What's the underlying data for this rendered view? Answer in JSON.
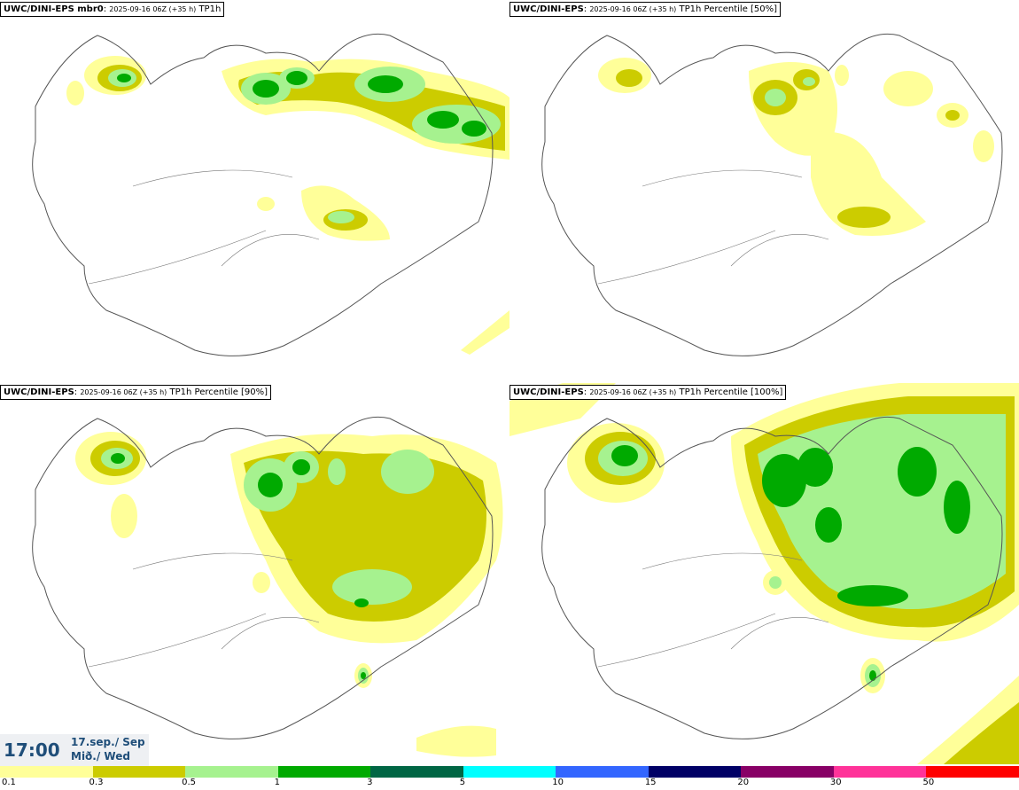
{
  "panels": [
    {
      "model": "UWC/DINI-EPS mbr0",
      "run": "2025-09-16 06Z (+35 h)",
      "field": "TP1h"
    },
    {
      "model": "UWC/DINI-EPS",
      "run": "2025-09-16 06Z (+35 h)",
      "field": "TP1h Percentile [50%]"
    },
    {
      "model": "UWC/DINI-EPS",
      "run": "2025-09-16 06Z (+35 h)",
      "field": "TP1h Percentile [90%]"
    },
    {
      "model": "UWC/DINI-EPS",
      "run": "2025-09-16 06Z (+35 h)",
      "field": "TP1h Percentile [100%]"
    }
  ],
  "valid_time": {
    "time": "17:00",
    "date": "17.sep./ Sep",
    "weekday": "Mið./ Wed"
  },
  "legend": {
    "colors": [
      "#ffff99",
      "#cccc00",
      "#a6f28f",
      "#00aa00",
      "#006644",
      "#00ffff",
      "#3366ff",
      "#000066",
      "#880066",
      "#ff3399",
      "#ff0000"
    ],
    "labels": [
      "0.1",
      "0.3",
      "0.5",
      "1",
      "3",
      "5",
      "10",
      "15",
      "20",
      "30",
      "50"
    ]
  }
}
